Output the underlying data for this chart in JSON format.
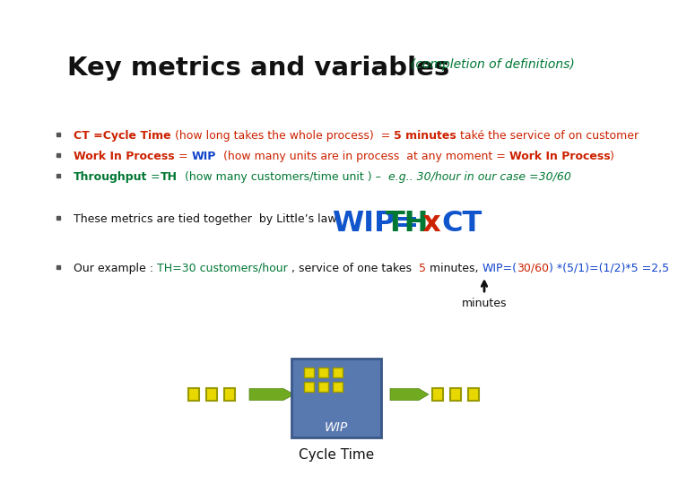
{
  "title_black": "Key metrics and variables",
  "title_green": "(completion of definitions)",
  "bg_color": "#ffffff",
  "line1_parts": [
    {
      "text": "CT =Cycle Time",
      "color": "#cc2200",
      "bold": true,
      "italic": false
    },
    {
      "text": " (how long takes the whole process)  = ",
      "color": "#cc2200",
      "bold": false,
      "italic": false
    },
    {
      "text": "5 minutes",
      "color": "#cc2200",
      "bold": true,
      "italic": false
    },
    {
      "text": " také the service of on customer",
      "color": "#cc2200",
      "bold": false,
      "italic": false
    }
  ],
  "line2_parts": [
    {
      "text": "Work In Process",
      "color": "#cc2200",
      "bold": true,
      "italic": false
    },
    {
      "text": " = ",
      "color": "#cc2200",
      "bold": false,
      "italic": false
    },
    {
      "text": "WIP",
      "color": "#1144cc",
      "bold": true,
      "italic": false
    },
    {
      "text": "  (how many units are in process  at any moment = ",
      "color": "#cc2200",
      "bold": false,
      "italic": false
    },
    {
      "text": "Work In Process",
      "color": "#cc2200",
      "bold": true,
      "italic": false
    },
    {
      "text": ")",
      "color": "#cc2200",
      "bold": false,
      "italic": false
    }
  ],
  "line3_parts": [
    {
      "text": "Throughput",
      "color": "#007733",
      "bold": true,
      "italic": false
    },
    {
      "text": " =",
      "color": "#007733",
      "bold": false,
      "italic": false
    },
    {
      "text": "TH",
      "color": "#007733",
      "bold": true,
      "italic": false
    },
    {
      "text": "  (how many customers/time unit ) –  ",
      "color": "#007733",
      "bold": false,
      "italic": false
    },
    {
      "text": "e.g.. 30/hour in our case =30/60",
      "color": "#007733",
      "bold": false,
      "italic": true
    }
  ],
  "line4_black": "These metrics are tied together  by Little’s law",
  "line5_parts": [
    {
      "text": "Our example : ",
      "color": "#111111",
      "bold": false,
      "italic": false
    },
    {
      "text": "TH=30 customers/hour",
      "color": "#007733",
      "bold": false,
      "italic": false
    },
    {
      "text": " , service of one takes  ",
      "color": "#111111",
      "bold": false,
      "italic": false
    },
    {
      "text": "5",
      "color": "#cc2200",
      "bold": false,
      "italic": false
    },
    {
      "text": " minutes, ",
      "color": "#111111",
      "bold": false,
      "italic": false
    },
    {
      "text": "WIP=(",
      "color": "#1144cc",
      "bold": false,
      "italic": false
    },
    {
      "text": "30/60",
      "color": "#cc2200",
      "bold": false,
      "italic": false
    },
    {
      "text": ") *(5/1)=(1/2)*5 =2,5",
      "color": "#1144cc",
      "bold": false,
      "italic": false
    }
  ],
  "minutes_label": "minutes",
  "wip_box_color": "#5878b0",
  "wip_box_border": "#3a5888",
  "wip_label": "WIP",
  "cycle_time_label": "Cycle Time",
  "dot_yellow": "#e8d800",
  "dot_border": "#999900",
  "arrow_green": "#70aa20",
  "arrow_green_dark": "#508010"
}
